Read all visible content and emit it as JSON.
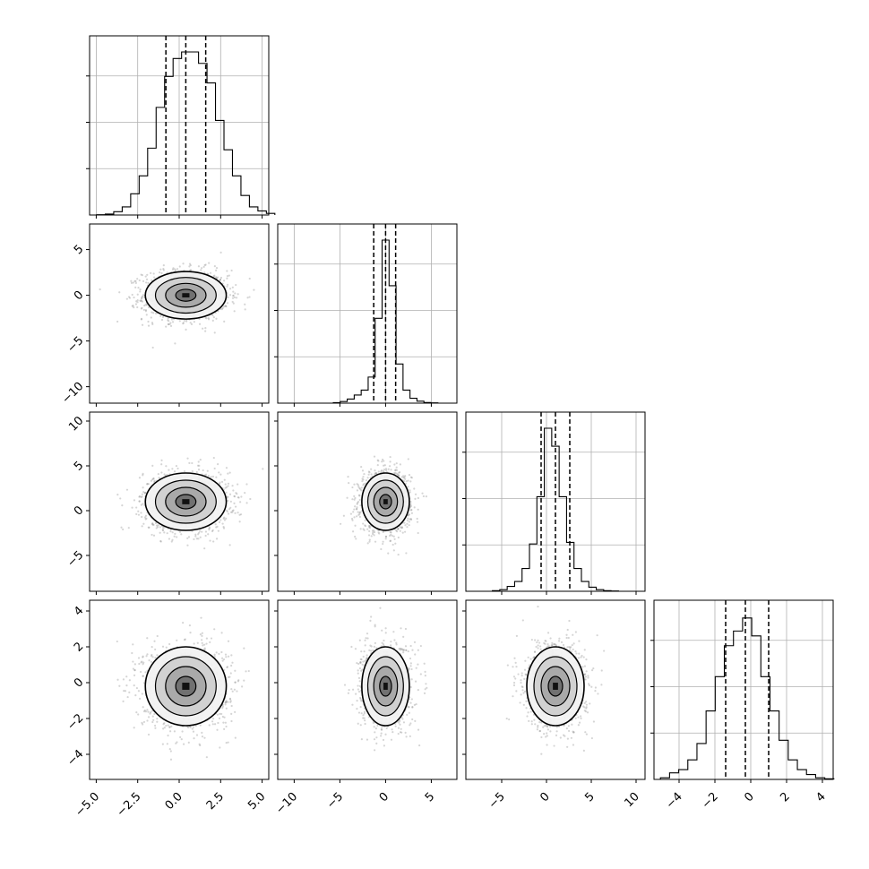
{
  "chart_data": {
    "type": "corner",
    "title": "",
    "grid": true,
    "dimensions": [
      {
        "ticks": [
          -5.0,
          -2.5,
          0.0,
          2.5,
          5.0
        ],
        "tick_labels": [
          "−5.0",
          "−2.5",
          "0.0",
          "2.5",
          "5.0"
        ],
        "range": [
          -5.4,
          5.4
        ],
        "quantiles": [
          -0.8,
          0.4,
          1.6
        ],
        "center": 0.4,
        "sigma": 1.22,
        "histogram": [
          0.002,
          0.006,
          0.02,
          0.05,
          0.13,
          0.24,
          0.41,
          0.66,
          0.85,
          0.96,
          1.0,
          1.0,
          0.93,
          0.81,
          0.58,
          0.4,
          0.24,
          0.12,
          0.05,
          0.025,
          0.01
        ]
      },
      {
        "ticks": [
          -10,
          -5,
          0,
          5
        ],
        "tick_labels": [
          "−10",
          "−5",
          "0",
          "5"
        ],
        "range": [
          -11.8,
          7.8
        ],
        "quantiles": [
          -1.3,
          0.0,
          1.1
        ],
        "center": 0.0,
        "sigma": 1.3,
        "histogram": [
          0.003,
          0.01,
          0.025,
          0.05,
          0.08,
          0.16,
          0.52,
          1.0,
          0.72,
          0.24,
          0.08,
          0.03,
          0.012,
          0.004,
          0.002
        ]
      },
      {
        "ticks": [
          -5,
          0,
          5,
          10
        ],
        "tick_labels": [
          "−5",
          "0",
          "5",
          "10"
        ],
        "range": [
          -9.0,
          11.0
        ],
        "quantiles": [
          -0.6,
          1.0,
          2.6
        ],
        "center": 1.0,
        "sigma": 1.6,
        "histogram": [
          0.004,
          0.01,
          0.03,
          0.06,
          0.14,
          0.29,
          0.58,
          1.0,
          0.89,
          0.58,
          0.3,
          0.14,
          0.06,
          0.025,
          0.01,
          0.004,
          0.002
        ]
      },
      {
        "ticks": [
          -4,
          -2,
          0,
          2,
          4
        ],
        "tick_labels": [
          "−4",
          "−2",
          "0",
          "2",
          "4"
        ],
        "range": [
          -5.4,
          4.6
        ],
        "quantiles": [
          -1.4,
          -0.3,
          1.0
        ],
        "center": -0.2,
        "sigma": 1.1,
        "histogram": [
          0.01,
          0.04,
          0.06,
          0.12,
          0.22,
          0.42,
          0.63,
          0.82,
          0.91,
          0.99,
          0.88,
          0.63,
          0.42,
          0.24,
          0.12,
          0.06,
          0.03,
          0.01,
          0.004
        ]
      }
    ],
    "y_tick_labels": {
      "1": [
        "−10",
        "−5",
        "0",
        "5"
      ],
      "2": [
        "−5",
        "0",
        "5",
        "10"
      ],
      "3": [
        "−4",
        "−2",
        "0",
        "2",
        "4"
      ]
    },
    "contour_levels_sigma": [
      0.5,
      1.0,
      1.5,
      2.0
    ]
  }
}
